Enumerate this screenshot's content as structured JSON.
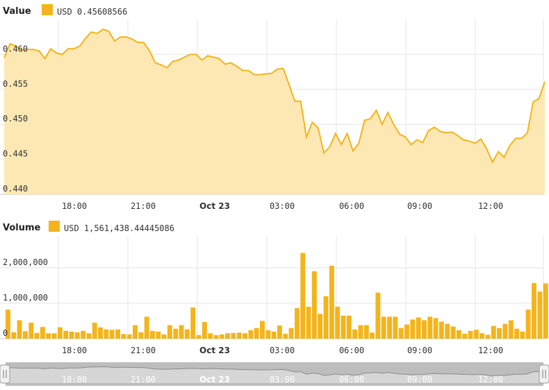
{
  "colors": {
    "accent": "#f4b41a",
    "fill": "#fde8b4",
    "bar": "#f4b41a",
    "navigator_bg": "#bdbdbd",
    "navigator_line": "#8a8a8a"
  },
  "chart_data": [
    {
      "type": "area",
      "panel": "Value",
      "title": "Value",
      "legend": {
        "currency": "USD",
        "value": "0.45608566"
      },
      "x_tick_labels": [
        "18:00",
        "21:00",
        "Oct 23",
        "03:00",
        "06:00",
        "09:00",
        "12:00"
      ],
      "ylim": [
        0.44,
        0.465
      ],
      "y_ticks": [
        "0.440",
        "0.445",
        "0.450",
        "0.455",
        "0.460"
      ],
      "grid": true,
      "x_start_label": "Oct 22 15:30",
      "x_step_minutes": 20,
      "values": [
        0.4595,
        0.4615,
        0.4612,
        0.4606,
        0.4607,
        0.4607,
        0.4605,
        0.4594,
        0.4608,
        0.4602,
        0.46,
        0.4608,
        0.4608,
        0.4612,
        0.4623,
        0.4632,
        0.463,
        0.4636,
        0.4633,
        0.4619,
        0.4625,
        0.4625,
        0.4622,
        0.4617,
        0.4617,
        0.4605,
        0.4588,
        0.4585,
        0.4581,
        0.459,
        0.4592,
        0.4596,
        0.46,
        0.46,
        0.4592,
        0.4598,
        0.4596,
        0.4594,
        0.4586,
        0.4588,
        0.4583,
        0.4577,
        0.4577,
        0.4571,
        0.4571,
        0.4572,
        0.4573,
        0.4579,
        0.458,
        0.4557,
        0.4533,
        0.4533,
        0.4482,
        0.4503,
        0.4495,
        0.4459,
        0.4468,
        0.4487,
        0.4471,
        0.4487,
        0.4462,
        0.4473,
        0.4506,
        0.4508,
        0.452,
        0.45,
        0.4517,
        0.45,
        0.4486,
        0.4482,
        0.4471,
        0.4478,
        0.4474,
        0.4491,
        0.4496,
        0.449,
        0.4488,
        0.4489,
        0.4484,
        0.4478,
        0.4476,
        0.4473,
        0.4479,
        0.4465,
        0.4446,
        0.4461,
        0.4453,
        0.447,
        0.448,
        0.448,
        0.4488,
        0.4532,
        0.4537,
        0.4561
      ]
    },
    {
      "type": "bar",
      "panel": "Volume",
      "title": "Volume",
      "legend": {
        "currency": "USD",
        "value": "1,561,438.44445086"
      },
      "x_tick_labels": [
        "18:00",
        "21:00",
        "Oct 23",
        "03:00",
        "06:00",
        "09:00",
        "12:00"
      ],
      "ylim": [
        0,
        2900000
      ],
      "y_ticks": [
        "0",
        "1,000,000",
        "2,000,000"
      ],
      "grid": true,
      "values": [
        820000,
        180000,
        520000,
        210000,
        450000,
        160000,
        330000,
        150000,
        150000,
        320000,
        220000,
        200000,
        180000,
        220000,
        150000,
        450000,
        320000,
        260000,
        250000,
        260000,
        130000,
        120000,
        380000,
        180000,
        620000,
        220000,
        200000,
        120000,
        380000,
        280000,
        380000,
        260000,
        880000,
        100000,
        470000,
        150000,
        100000,
        120000,
        150000,
        160000,
        170000,
        150000,
        240000,
        300000,
        500000,
        240000,
        200000,
        370000,
        140000,
        300000,
        860000,
        2420000,
        900000,
        1900000,
        700000,
        1200000,
        2060000,
        900000,
        650000,
        650000,
        260000,
        380000,
        380000,
        170000,
        1300000,
        620000,
        620000,
        620000,
        300000,
        400000,
        540000,
        600000,
        520000,
        620000,
        580000,
        480000,
        420000,
        340000,
        240000,
        140000,
        220000,
        250000,
        150000,
        110000,
        360000,
        300000,
        420000,
        520000,
        280000,
        200000,
        820000,
        1570000,
        1330000,
        1560000
      ]
    }
  ],
  "navigator": {
    "x_tick_labels": [
      "18:00",
      "21:00",
      "Oct 23",
      "03:00",
      "06:00",
      "09:00",
      "12:00"
    ]
  }
}
